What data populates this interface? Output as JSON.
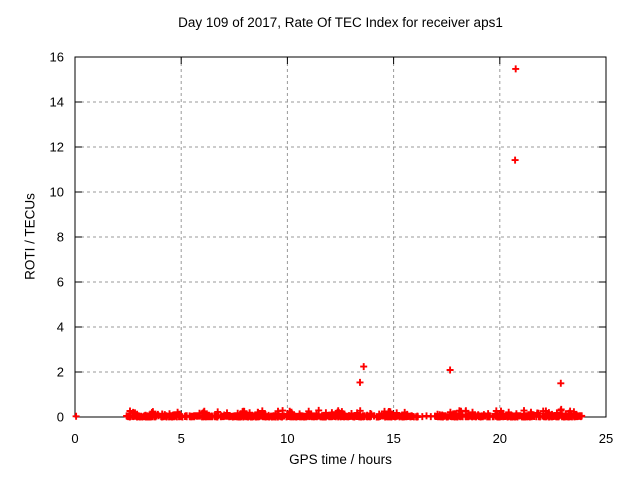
{
  "chart_data": {
    "type": "scatter",
    "title": "Day 109 of 2017, Rate Of TEC Index for receiver aps1",
    "xlabel": "GPS time / hours",
    "ylabel": "ROTI / TECUs",
    "xlim": [
      0,
      25
    ],
    "ylim": [
      0,
      16
    ],
    "xticks": [
      0,
      5,
      10,
      15,
      20,
      25
    ],
    "yticks": [
      0,
      2,
      4,
      6,
      8,
      10,
      12,
      14,
      16
    ],
    "grid": true,
    "legend_position": "none",
    "background_color": "#ffffff",
    "axis_color": "#000000",
    "grid_color": "#999999",
    "marker": "plus",
    "marker_color": "#ff0000",
    "series": [
      {
        "name": "ROTI",
        "points": [
          [
            0.05,
            0.03
          ],
          [
            13.42,
            1.54
          ],
          [
            13.59,
            2.24
          ],
          [
            16.35,
            0.02
          ],
          [
            16.55,
            0.05
          ],
          [
            16.75,
            0.02
          ],
          [
            17.66,
            2.09
          ],
          [
            20.72,
            11.42
          ],
          [
            20.75,
            15.47
          ],
          [
            22.87,
            1.5
          ],
          [
            22.89,
            0.34
          ]
        ],
        "dense_band": {
          "description": "near-continuous band of + markers hugging ROTI = 0 (values ~0 to 0.3 TECUs)",
          "x_start": 2.4,
          "x_end": 23.9,
          "y_min": 0,
          "y_max": 0.3,
          "gaps_x": [
            [
              16.15,
              16.9
            ]
          ],
          "approx_point_count": 1000
        }
      }
    ]
  }
}
